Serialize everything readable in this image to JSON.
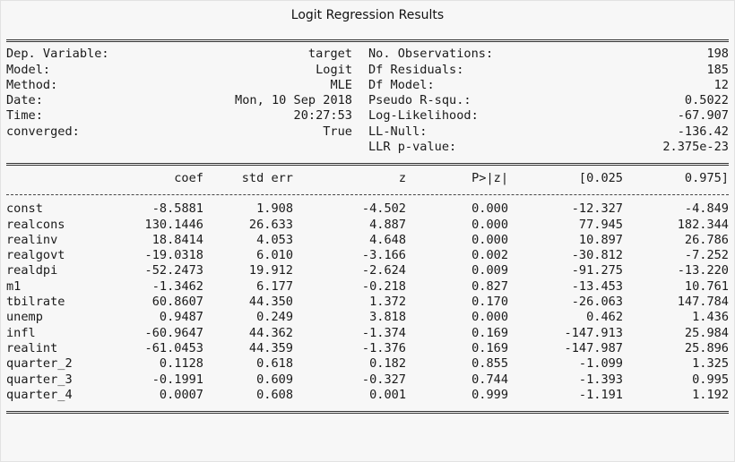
{
  "caption": "Logit Regression Results",
  "info": {
    "left": [
      {
        "label": "Dep. Variable:",
        "value": "target"
      },
      {
        "label": "Model:",
        "value": "Logit"
      },
      {
        "label": "Method:",
        "value": "MLE"
      },
      {
        "label": "Date:",
        "value": "Mon, 10 Sep 2018"
      },
      {
        "label": "Time:",
        "value": "20:27:53"
      },
      {
        "label": "converged:",
        "value": "True"
      },
      {
        "label": "",
        "value": ""
      }
    ],
    "right": [
      {
        "label": "No. Observations:",
        "value": "198"
      },
      {
        "label": "Df Residuals:",
        "value": "185"
      },
      {
        "label": "Df Model:",
        "value": "12"
      },
      {
        "label": "Pseudo R-squ.:",
        "value": "0.5022"
      },
      {
        "label": "Log-Likelihood:",
        "value": "-67.907"
      },
      {
        "label": "LL-Null:",
        "value": "-136.42"
      },
      {
        "label": "LLR p-value:",
        "value": "2.375e-23"
      }
    ]
  },
  "table": {
    "header": [
      "",
      "coef",
      "std err",
      "z",
      "P>|z|",
      "[0.025",
      "0.975]"
    ],
    "rows": [
      [
        "const",
        "-8.5881",
        "1.908",
        "-4.502",
        "0.000",
        "-12.327",
        "-4.849"
      ],
      [
        "realcons",
        "130.1446",
        "26.633",
        "4.887",
        "0.000",
        "77.945",
        "182.344"
      ],
      [
        "realinv",
        "18.8414",
        "4.053",
        "4.648",
        "0.000",
        "10.897",
        "26.786"
      ],
      [
        "realgovt",
        "-19.0318",
        "6.010",
        "-3.166",
        "0.002",
        "-30.812",
        "-7.252"
      ],
      [
        "realdpi",
        "-52.2473",
        "19.912",
        "-2.624",
        "0.009",
        "-91.275",
        "-13.220"
      ],
      [
        "m1",
        "-1.3462",
        "6.177",
        "-0.218",
        "0.827",
        "-13.453",
        "10.761"
      ],
      [
        "tbilrate",
        "60.8607",
        "44.350",
        "1.372",
        "0.170",
        "-26.063",
        "147.784"
      ],
      [
        "unemp",
        "0.9487",
        "0.249",
        "3.818",
        "0.000",
        "0.462",
        "1.436"
      ],
      [
        "infl",
        "-60.9647",
        "44.362",
        "-1.374",
        "0.169",
        "-147.913",
        "25.984"
      ],
      [
        "realint",
        "-61.0453",
        "44.359",
        "-1.376",
        "0.169",
        "-147.987",
        "25.896"
      ],
      [
        "quarter_2",
        "0.1128",
        "0.618",
        "0.182",
        "0.855",
        "-1.099",
        "1.325"
      ],
      [
        "quarter_3",
        "-0.1991",
        "0.609",
        "-0.327",
        "0.744",
        "-1.393",
        "0.995"
      ],
      [
        "quarter_4",
        "0.0007",
        "0.608",
        "0.001",
        "0.999",
        "-1.191",
        "1.192"
      ]
    ]
  }
}
